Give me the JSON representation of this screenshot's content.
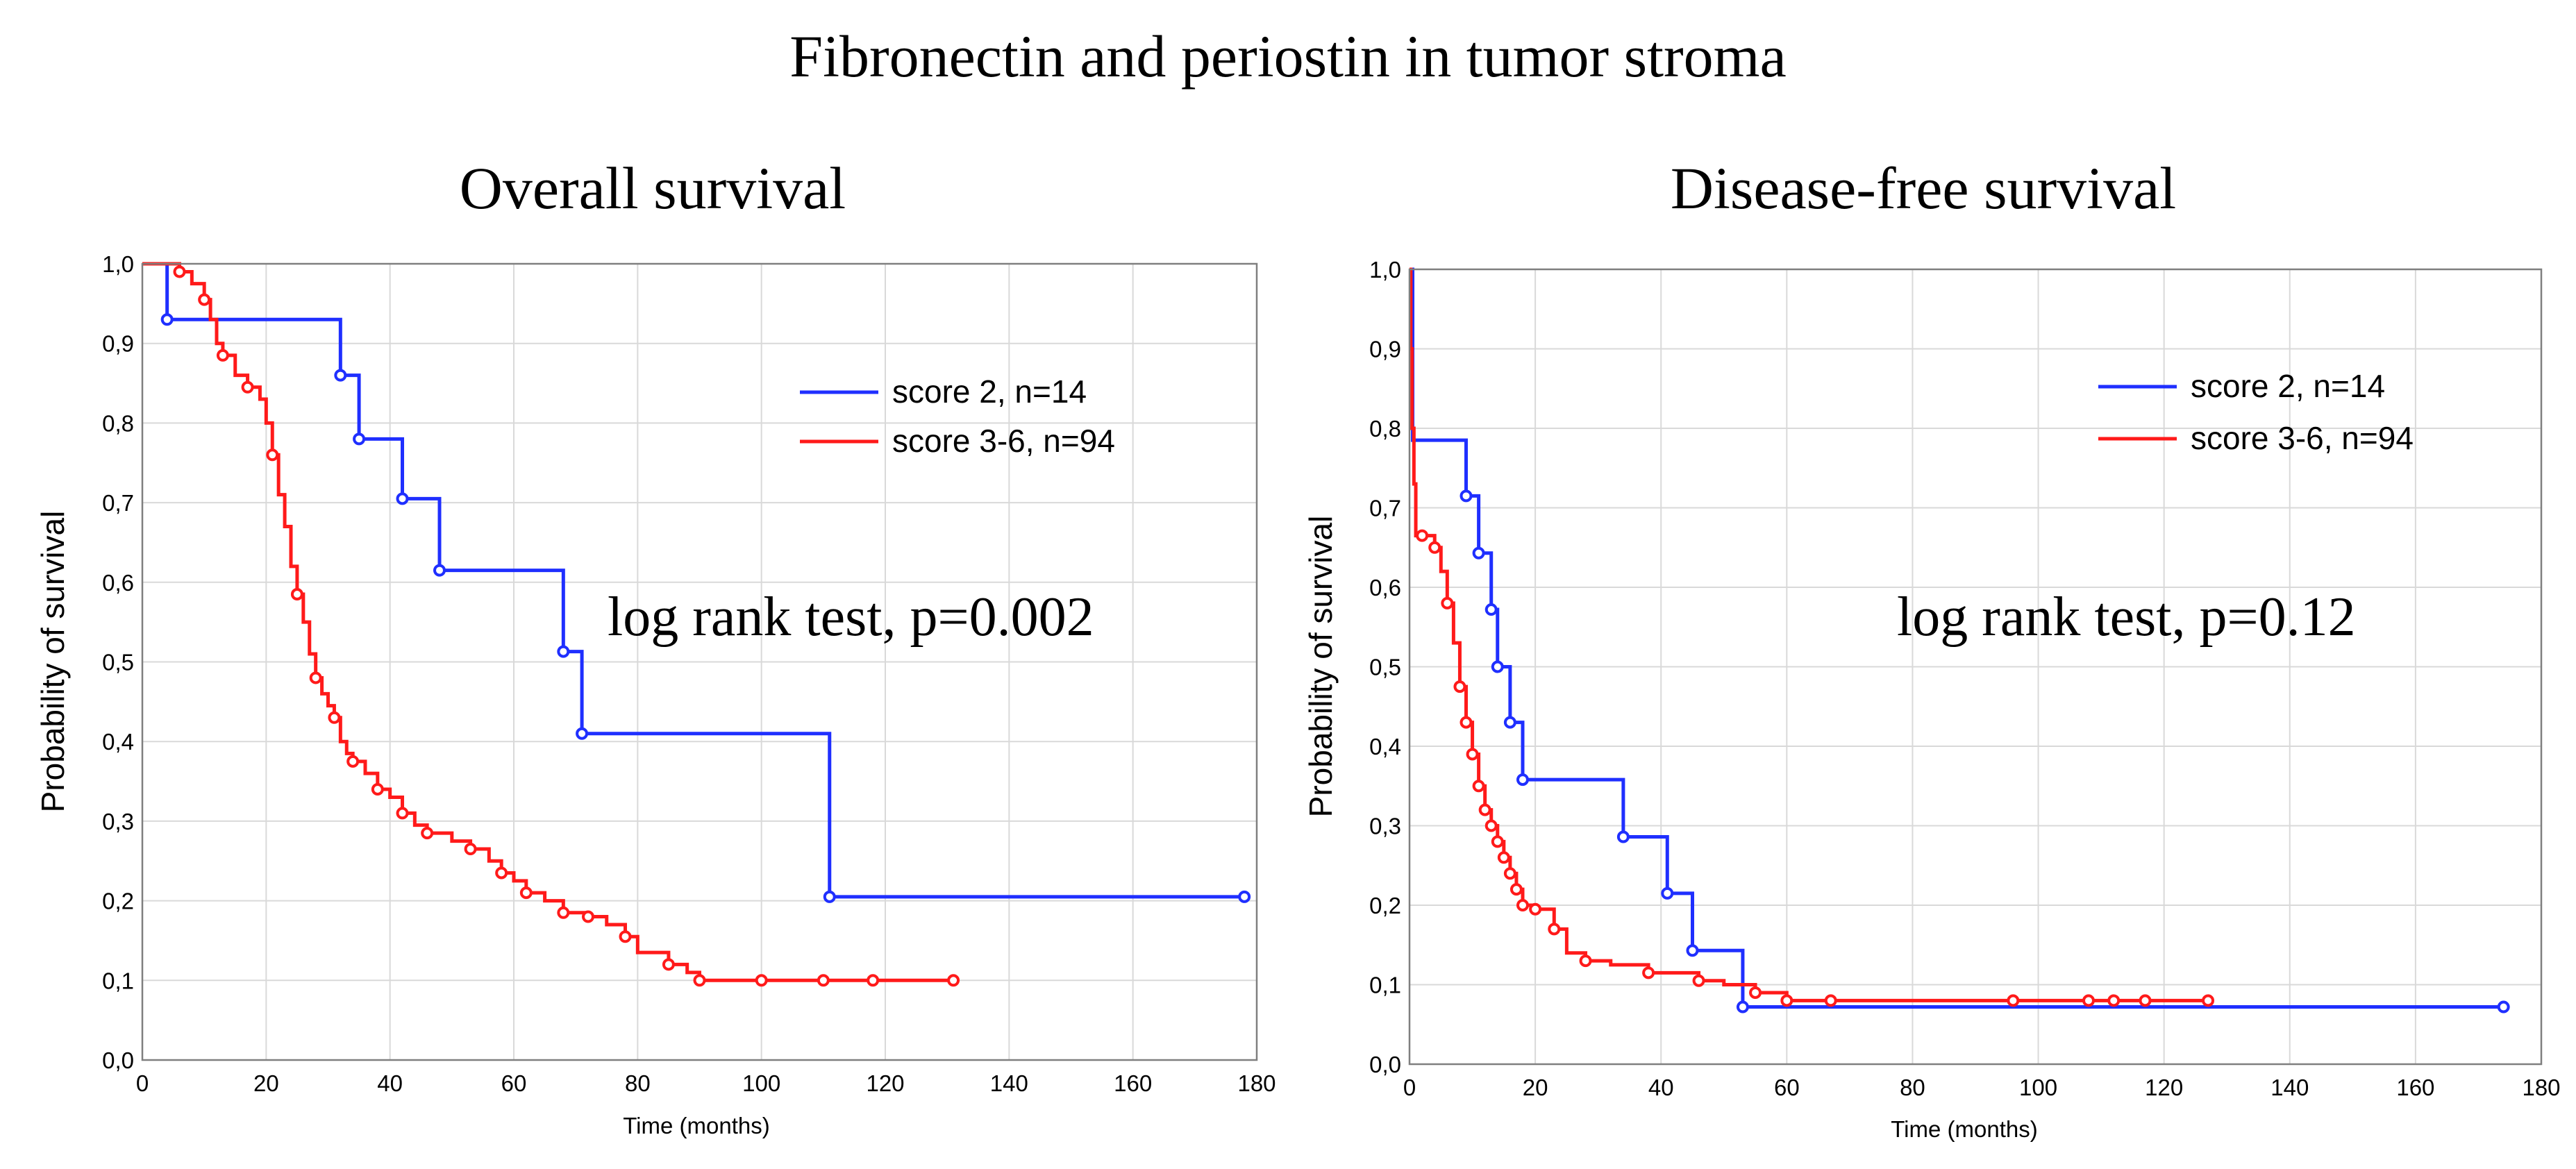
{
  "figure_title": "Fibronectin and periostin in tumor stroma",
  "colors": {
    "score2": "#1f2fff",
    "score36": "#ff1a1a"
  },
  "chart_data": [
    {
      "type": "line",
      "step": "post",
      "title": "Overall survival",
      "xlabel": "Time (months)",
      "ylabel": "Probability of survival",
      "xlim": [
        0,
        180
      ],
      "ylim": [
        0,
        1
      ],
      "xticks": [
        "0",
        "20",
        "40",
        "60",
        "80",
        "100",
        "120",
        "140",
        "160",
        "180"
      ],
      "yticks": [
        "0,0",
        "0,1",
        "0,2",
        "0,3",
        "0,4",
        "0,5",
        "0,6",
        "0,7",
        "0,8",
        "0,9",
        "1,0"
      ],
      "legend": [
        "score 2, n=14",
        "score 3-6, n=94"
      ],
      "legend_position": "upper-right",
      "annotation": "log rank test, p=0.002",
      "series": [
        {
          "name": "score 2, n=14",
          "color": "#1f2fff",
          "x": [
            0,
            4,
            32,
            35,
            42,
            48,
            68,
            71,
            111,
            178
          ],
          "y": [
            1.0,
            0.93,
            0.86,
            0.78,
            0.705,
            0.615,
            0.513,
            0.41,
            0.205,
            0.205
          ],
          "censored_x": [
            4,
            32,
            35,
            42,
            48,
            68,
            71,
            111,
            178
          ]
        },
        {
          "name": "score 3-6, n=94",
          "color": "#ff1a1a",
          "x": [
            0,
            6,
            8,
            10,
            11,
            12,
            13,
            15,
            17,
            19,
            20,
            21,
            22,
            23,
            24,
            25,
            26,
            27,
            28,
            29,
            30,
            31,
            32,
            33,
            34,
            36,
            38,
            40,
            42,
            44,
            46,
            50,
            53,
            56,
            58,
            60,
            62,
            65,
            68,
            72,
            75,
            78,
            80,
            85,
            88,
            90,
            131
          ],
          "y": [
            1.0,
            0.99,
            0.975,
            0.955,
            0.93,
            0.9,
            0.885,
            0.86,
            0.845,
            0.83,
            0.8,
            0.76,
            0.71,
            0.67,
            0.62,
            0.585,
            0.55,
            0.51,
            0.48,
            0.46,
            0.445,
            0.43,
            0.4,
            0.385,
            0.375,
            0.36,
            0.34,
            0.33,
            0.31,
            0.295,
            0.285,
            0.275,
            0.265,
            0.25,
            0.235,
            0.225,
            0.21,
            0.2,
            0.185,
            0.18,
            0.17,
            0.155,
            0.135,
            0.12,
            0.11,
            0.1,
            0.1
          ],
          "censored_x": [
            6,
            10,
            13,
            17,
            21,
            25,
            28,
            31,
            34,
            38,
            42,
            46,
            53,
            58,
            62,
            68,
            72,
            78,
            85,
            90,
            100,
            110,
            118,
            131
          ]
        }
      ]
    },
    {
      "type": "line",
      "step": "post",
      "title": "Disease-free survival",
      "xlabel": "Time (months)",
      "ylabel": "Probability of survival",
      "xlim": [
        0,
        180
      ],
      "ylim": [
        0,
        1
      ],
      "xticks": [
        "0",
        "20",
        "40",
        "60",
        "80",
        "100",
        "120",
        "140",
        "160",
        "180"
      ],
      "yticks": [
        "0,0",
        "0,1",
        "0,2",
        "0,3",
        "0,4",
        "0,5",
        "0,6",
        "0,7",
        "0,8",
        "0,9",
        "1,0"
      ],
      "legend": [
        "score 2, n=14",
        "score 3-6, n=94"
      ],
      "legend_position": "upper-right",
      "annotation": "log rank test, p=0.12",
      "series": [
        {
          "name": "score 2, n=14",
          "color": "#1f2fff",
          "x": [
            0,
            0.5,
            9,
            11,
            13,
            14,
            16,
            18,
            34,
            41,
            45,
            53,
            174
          ],
          "y": [
            1.0,
            0.785,
            0.715,
            0.643,
            0.572,
            0.5,
            0.43,
            0.358,
            0.286,
            0.215,
            0.143,
            0.072,
            0.072
          ],
          "censored_x": [
            9,
            11,
            13,
            14,
            16,
            18,
            34,
            41,
            45,
            53,
            174
          ]
        },
        {
          "name": "score 3-6, n=94",
          "color": "#ff1a1a",
          "x": [
            0,
            0.2,
            0.4,
            0.7,
            1,
            4,
            5,
            6,
            7,
            8,
            9,
            10,
            11,
            12,
            13,
            14,
            15,
            16,
            17,
            18,
            20,
            23,
            25,
            28,
            32,
            38,
            46,
            50,
            55,
            60,
            127
          ],
          "y": [
            1.0,
            0.9,
            0.8,
            0.73,
            0.665,
            0.65,
            0.62,
            0.58,
            0.53,
            0.475,
            0.43,
            0.39,
            0.35,
            0.32,
            0.3,
            0.28,
            0.26,
            0.24,
            0.22,
            0.2,
            0.195,
            0.17,
            0.14,
            0.13,
            0.125,
            0.115,
            0.105,
            0.1,
            0.09,
            0.08,
            0.08
          ],
          "censored_x": [
            2,
            4,
            6,
            8,
            9,
            10,
            11,
            12,
            13,
            14,
            15,
            16,
            17,
            18,
            20,
            23,
            28,
            38,
            46,
            55,
            60,
            67,
            96,
            108,
            112,
            117,
            127
          ]
        }
      ]
    }
  ]
}
